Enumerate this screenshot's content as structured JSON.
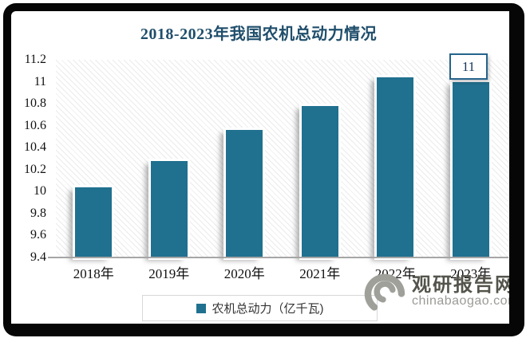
{
  "title": "2018-2023年我国农机总动力情况",
  "chart_data": {
    "type": "bar",
    "title": "2018-2023年我国农机总动力情况",
    "categories": [
      "2018年",
      "2019年",
      "2020年",
      "2021年",
      "2022年",
      "2023年"
    ],
    "series": [
      {
        "name": "农机总动力（亿千瓦)",
        "values": [
          10.04,
          10.28,
          10.56,
          10.78,
          11.04,
          11.0
        ]
      }
    ],
    "xlabel": "",
    "ylabel": "",
    "ylim": [
      9.4,
      11.2
    ],
    "y_ticks": [
      "9.4",
      "9.6",
      "9.8",
      "10",
      "10.2",
      "10.4",
      "10.6",
      "10.8",
      "11",
      "11.2"
    ],
    "grid": false,
    "legend_position": "bottom",
    "bar_color": "#20708F",
    "plot_background": "diagonal-hatch",
    "data_labels": [
      {
        "category": "2023年",
        "text": "11"
      }
    ]
  },
  "legend": {
    "label": "农机总动力（亿千瓦)"
  },
  "annotation": {
    "last_bar_label": "11"
  },
  "watermark": {
    "site_name": "观研报告网",
    "site_url": "chinabaogao.com"
  },
  "colors": {
    "bar": "#20708F",
    "title_text": "#1F4E6B",
    "axis_line": "#A6A6A6",
    "frame": "#060606",
    "value_label_border": "#26648B"
  }
}
